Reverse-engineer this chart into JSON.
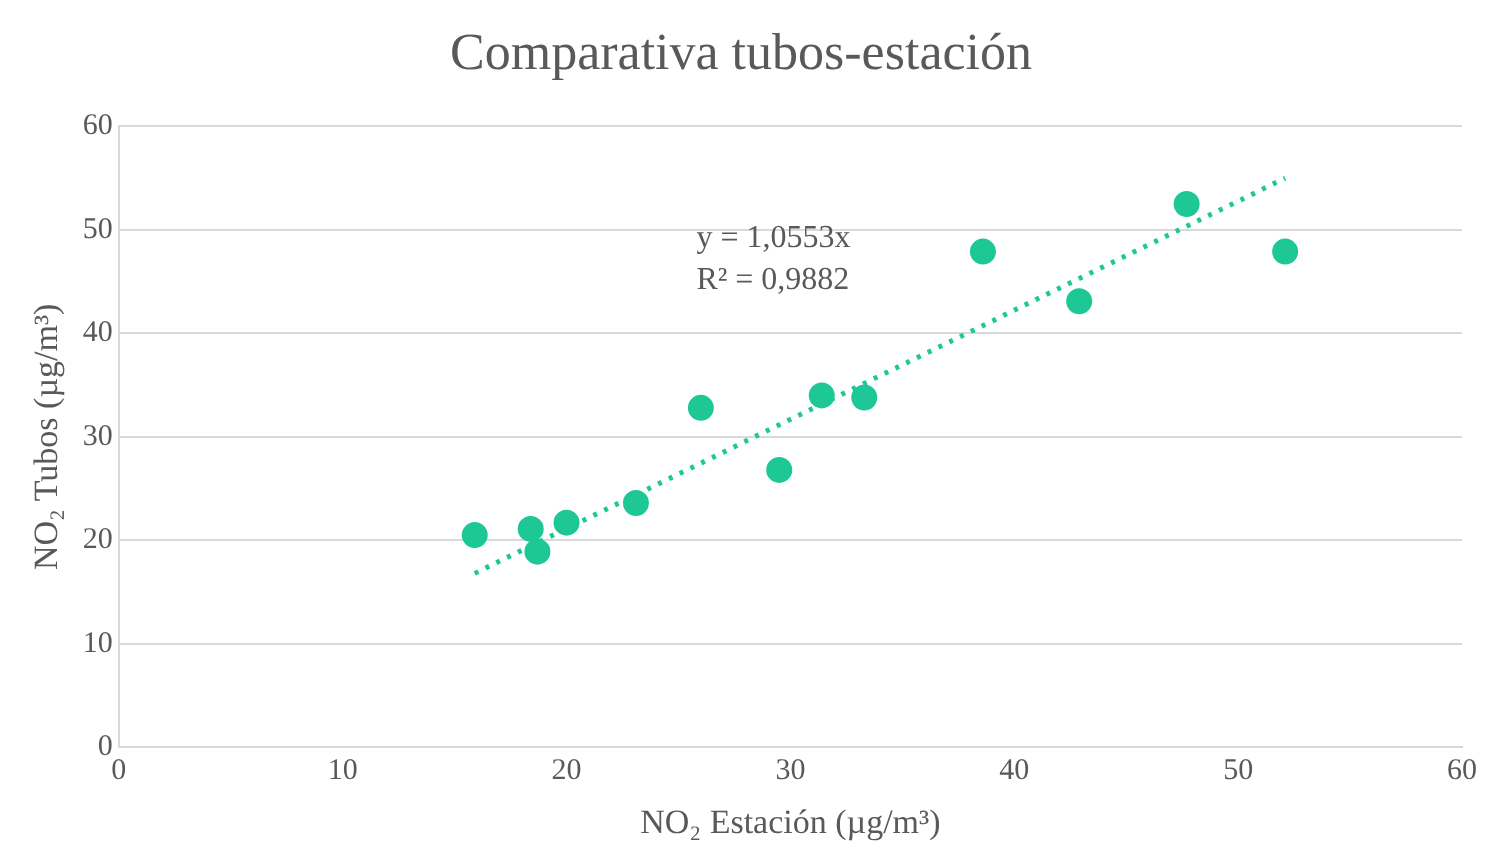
{
  "chart_data": {
    "type": "scatter",
    "title": "Comparativa tubos-estación",
    "xlabel": "NO₂ Estación (µg/m³)",
    "ylabel": "NO₂ Tubos (µg/m³)",
    "xlim": [
      0,
      60
    ],
    "xticks": [
      0,
      10,
      20,
      30,
      40,
      50,
      60
    ],
    "ylim": [
      0,
      60
    ],
    "yticks": [
      0,
      10,
      20,
      30,
      40,
      50,
      60
    ],
    "grid": "y",
    "legend": false,
    "marker": "circle",
    "series": [
      {
        "type": "scatter",
        "color": "#1ec796",
        "x": [
          15.9,
          18.4,
          18.7,
          20.0,
          23.1,
          26.0,
          29.5,
          31.4,
          33.3,
          38.6,
          42.9,
          47.7,
          52.1
        ],
        "values": [
          20.5,
          21.1,
          18.9,
          21.7,
          23.6,
          32.8,
          26.8,
          34.0,
          33.8,
          47.9,
          43.1,
          52.5,
          47.9
        ]
      },
      {
        "type": "line",
        "color": "#1ec796",
        "line_style": "dotted",
        "marker": "none",
        "x": [
          15.9,
          52.1
        ],
        "values": [
          16.8,
          55.0
        ]
      }
    ],
    "annotations": [
      "y = 1,0553x",
      "R² = 0,9882"
    ]
  }
}
